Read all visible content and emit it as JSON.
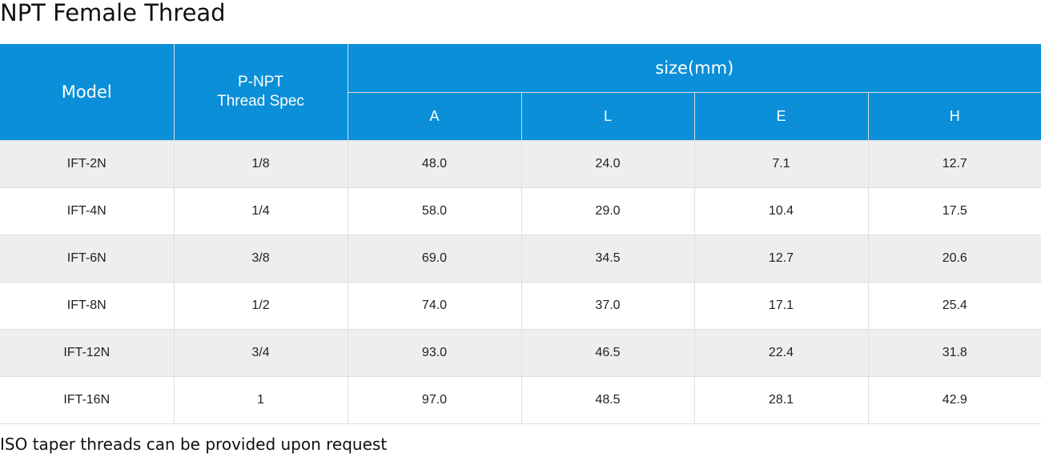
{
  "title": "NPT Female Thread",
  "table": {
    "headers": {
      "model": "Model",
      "spec_line1": "P-NPT",
      "spec_line2": "Thread Spec",
      "size": "size(mm)",
      "a": "A",
      "l": "L",
      "e": "E",
      "h": "H"
    },
    "header_color": "#0a8fd8",
    "rows": [
      [
        "IFT-2N",
        "1/8",
        "48.0",
        "24.0",
        "7.1",
        "12.7"
      ],
      [
        "IFT-4N",
        "1/4",
        "58.0",
        "29.0",
        "10.4",
        "17.5"
      ],
      [
        "IFT-6N",
        "3/8",
        "69.0",
        "34.5",
        "12.7",
        "20.6"
      ],
      [
        "IFT-8N",
        "1/2",
        "74.0",
        "37.0",
        "17.1",
        "25.4"
      ],
      [
        "IFT-12N",
        "3/4",
        "93.0",
        "46.5",
        "22.4",
        "31.8"
      ],
      [
        "IFT-16N",
        "1",
        "97.0",
        "48.5",
        "28.1",
        "42.9"
      ]
    ]
  },
  "footnote": "ISO taper threads can be provided upon request"
}
